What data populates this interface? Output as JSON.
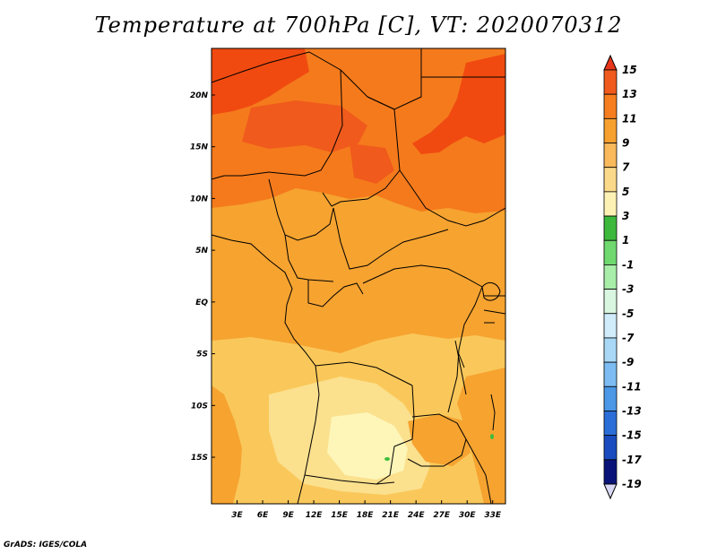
{
  "title": "Temperature at 700hPa [C], VT: 2020070312",
  "footer": "GrADS: IGES/COLA",
  "map": {
    "lon_range": [
      0,
      34.5
    ],
    "lat_range": [
      -19.5,
      24.5
    ],
    "x_ticks": [
      "3E",
      "6E",
      "9E",
      "12E",
      "15E",
      "18E",
      "21E",
      "24E",
      "27E",
      "30E",
      "33E"
    ],
    "x_tick_values": [
      3,
      6,
      9,
      12,
      15,
      18,
      21,
      24,
      27,
      30,
      33
    ],
    "y_ticks": [
      "20N",
      "15N",
      "10N",
      "5N",
      "EQ",
      "5S",
      "10S",
      "15S"
    ],
    "y_tick_values": [
      20,
      15,
      10,
      5,
      0,
      -5,
      -10,
      -15
    ],
    "field_colors": {
      "13": "#f04a10",
      "11": "#f57a1c",
      "9": "#f6a330",
      "7": "#fac85a",
      "5": "#fbe08e",
      "3": "#fdf6b8",
      "1": "#3cbe3c"
    }
  },
  "colorbar": {
    "labels": [
      "15",
      "13",
      "11",
      "9",
      "7",
      "5",
      "3",
      "1",
      "-1",
      "-3",
      "-5",
      "-7",
      "-9",
      "-11",
      "-13",
      "-15",
      "-17",
      "-19"
    ],
    "colors": [
      "#e8361a",
      "#f05a1c",
      "#f67e1e",
      "#f6a030",
      "#fab95a",
      "#fbd98a",
      "#fdf2b4",
      "#3cb83c",
      "#6fd86f",
      "#a8eda8",
      "#d8f6e0",
      "#d0ecfb",
      "#a8d8f6",
      "#7cbcf2",
      "#4a98e6",
      "#2c6ed8",
      "#1a4cc0",
      "#0a1478",
      "#d8d8f4"
    ]
  }
}
